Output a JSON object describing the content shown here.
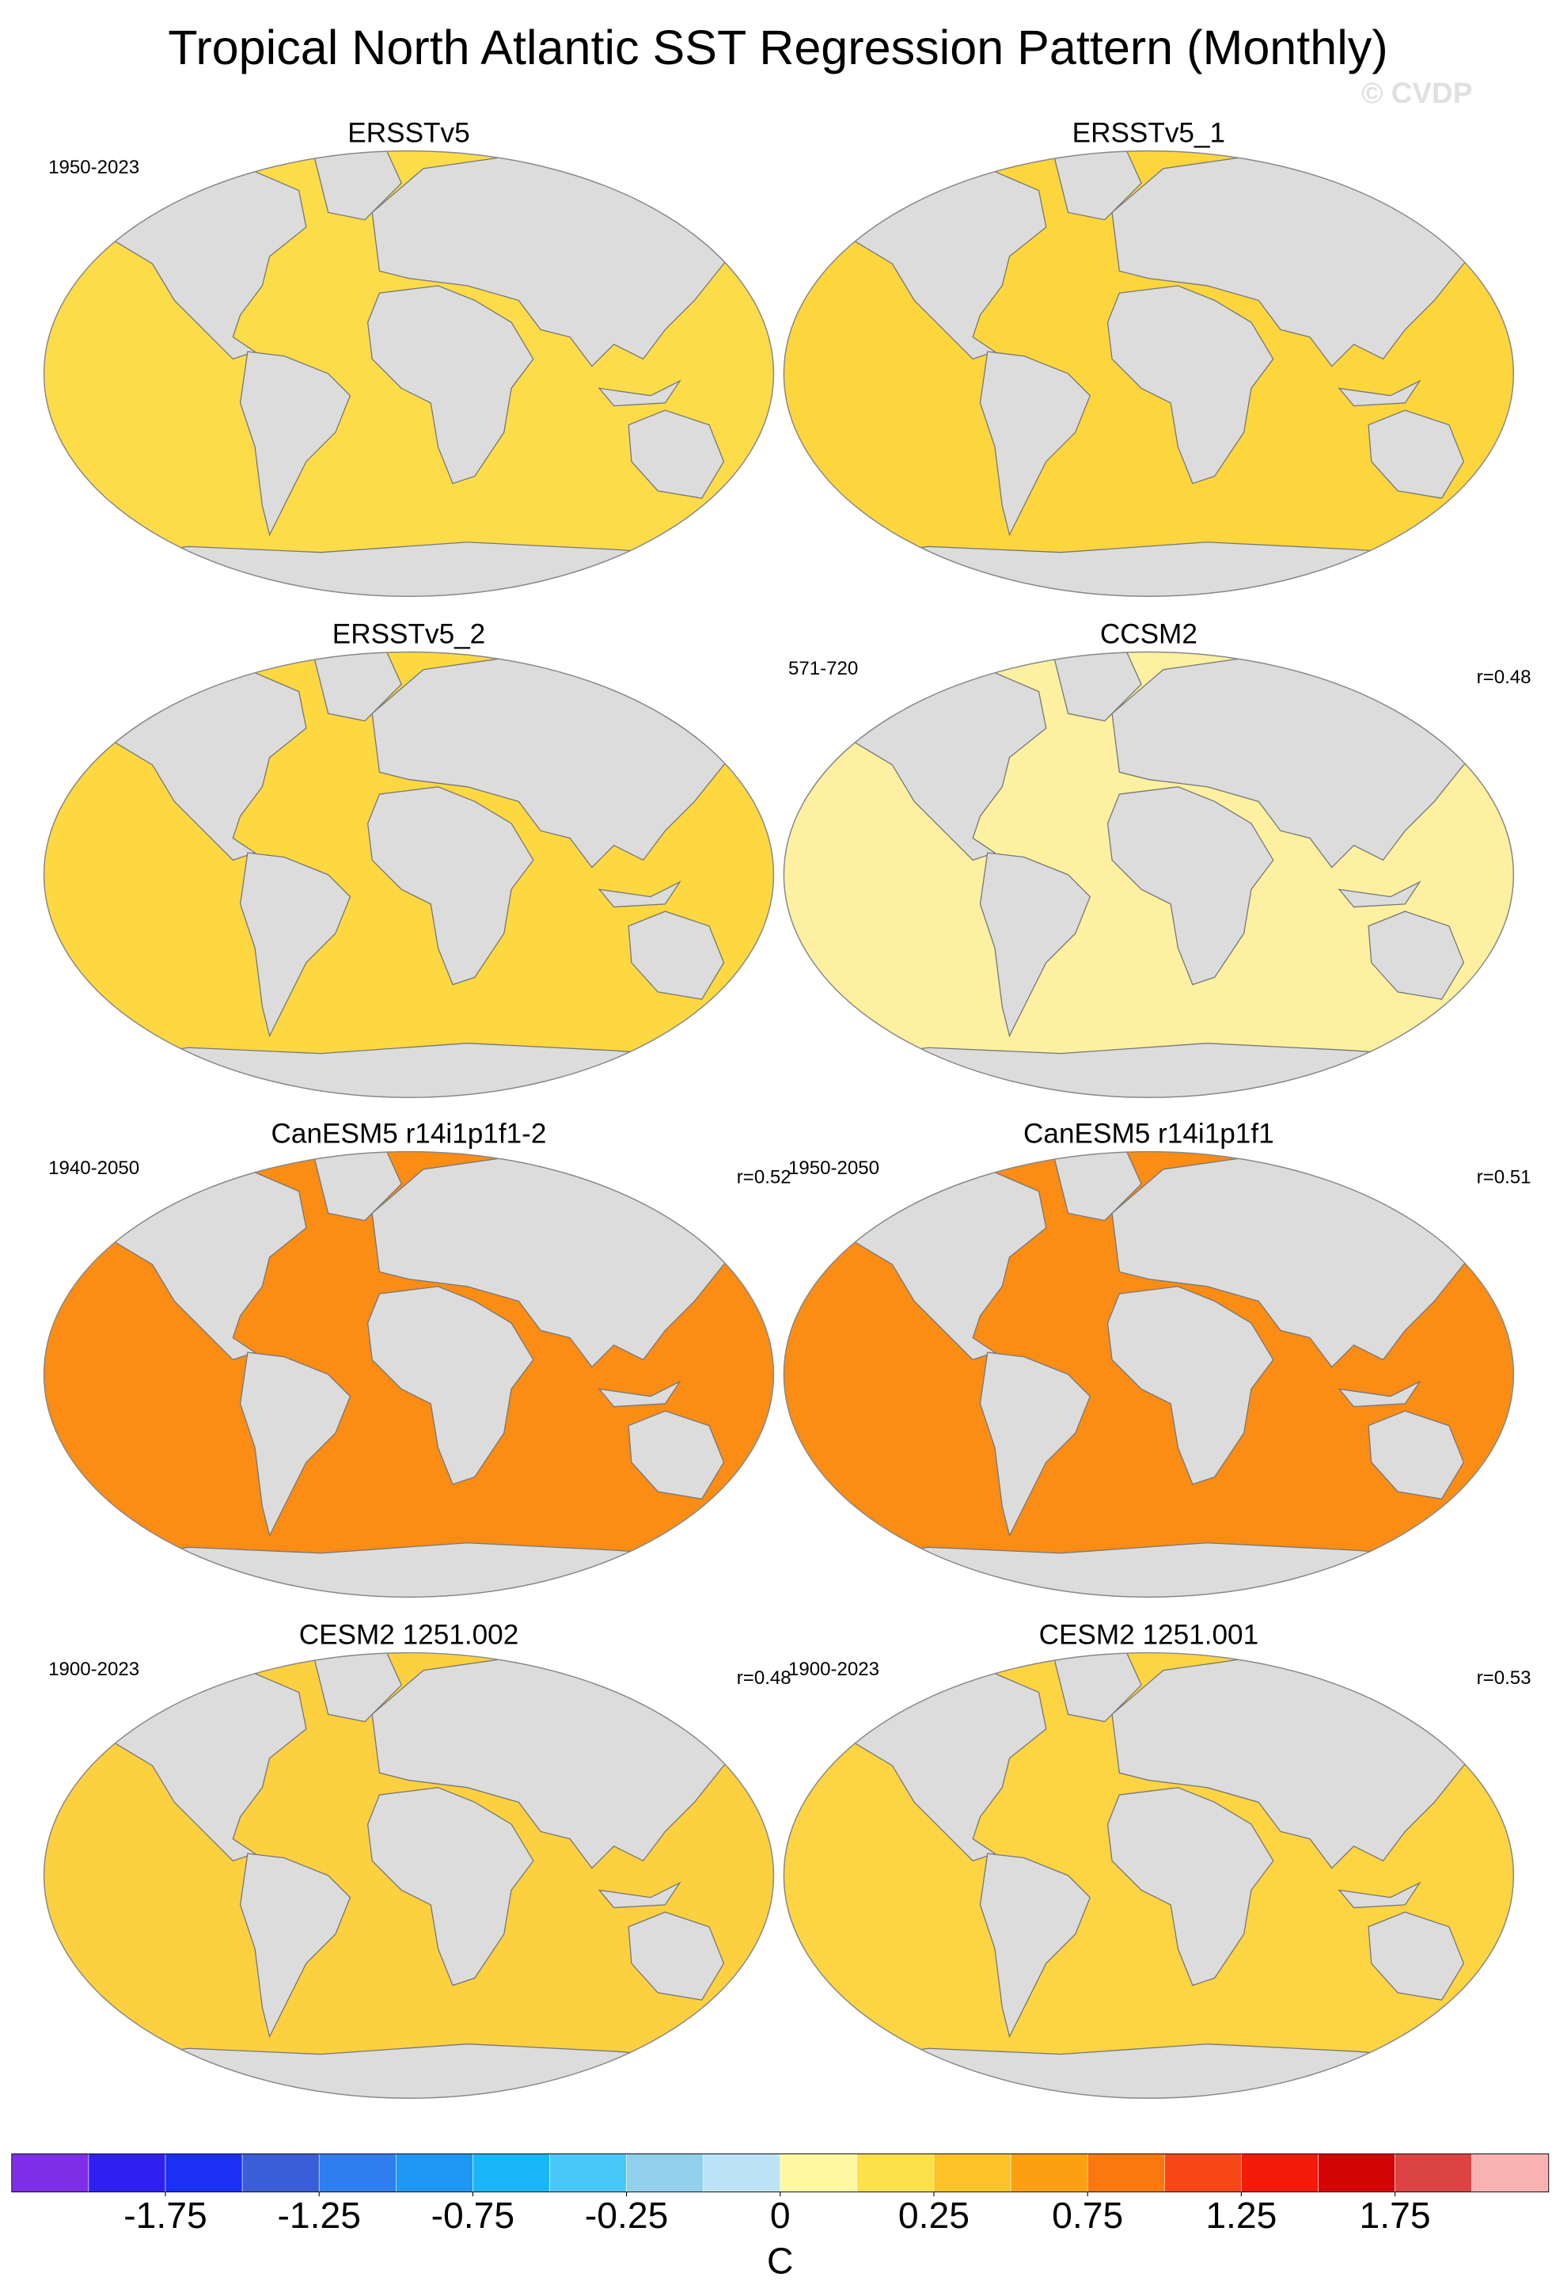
{
  "title": "Tropical North Atlantic SST Regression Pattern (Monthly)",
  "watermark": "© CVDP",
  "panels": [
    {
      "title": "ERSSTv5",
      "period": "1950-2023",
      "color": "#fddc4a"
    },
    {
      "title": "ERSSTv5_1",
      "color": "#fdd63e"
    },
    {
      "title": "ERSSTv5_2",
      "color": "#fdd840"
    },
    {
      "title": "CCSM2",
      "period": "571-720",
      "r": "r=0.48",
      "color": "#fdf0a0"
    },
    {
      "title": "CanESM5 r14i1p1f1-2",
      "period": "1940-2050",
      "r": "r=0.52",
      "color": "#fb8c14"
    },
    {
      "title": "CanESM5 r14i1p1f1",
      "period": "1950-2050",
      "r": "r=0.51",
      "color": "#fb8c14"
    },
    {
      "title": "CESM2 1251.002",
      "period": "1900-2023",
      "r": "r=0.48",
      "color": "#fdd040"
    },
    {
      "title": "CESM2 1251.001",
      "period": "1900-2023",
      "r": "r=0.53",
      "color": "#fdd442"
    }
  ],
  "colorbar": {
    "unit": "C",
    "levels": [
      -2,
      -1.75,
      -1.5,
      -1.25,
      -1,
      -0.75,
      -0.5,
      -0.25,
      -0.1,
      0,
      0.1,
      0.25,
      0.5,
      0.75,
      1,
      1.25,
      1.5,
      1.75,
      2
    ],
    "ticks": [
      -1.75,
      -1.25,
      -0.75,
      -0.25,
      0,
      0.25,
      0.75,
      1.25,
      1.75
    ],
    "colors": [
      "#7d2ee6",
      "#3020f0",
      "#1a30f2",
      "#3a5ed8",
      "#2e7ef0",
      "#1e98f5",
      "#18b6f8",
      "#48c8f8",
      "#92d0ee",
      "#bce4f6",
      "#fff8a0",
      "#fde04a",
      "#fcc226",
      "#fca012",
      "#fb780e",
      "#f84818",
      "#f41a0a",
      "#d20404",
      "#dc4444",
      "#f8b2b2"
    ]
  }
}
